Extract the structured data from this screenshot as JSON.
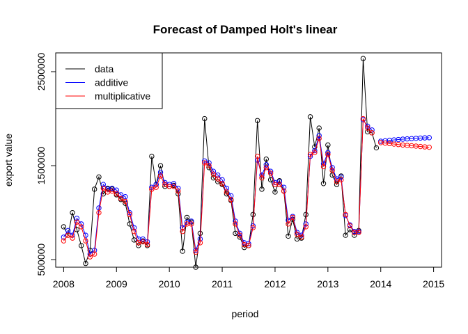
{
  "chart_data": {
    "type": "line",
    "title": "Forecast of Damped Holt's linear",
    "xlabel": "period",
    "ylabel": "export value",
    "xlim": [
      2007.85,
      2015.15
    ],
    "ylim": [
      420000,
      2700000
    ],
    "x_ticks": [
      2008,
      2009,
      2010,
      2011,
      2012,
      2013,
      2014,
      2015
    ],
    "x_tick_labels": [
      "2008",
      "2009",
      "2010",
      "2011",
      "2012",
      "2013",
      "2014",
      "2015"
    ],
    "y_ticks": [
      500000,
      1500000,
      2500000
    ],
    "y_tick_labels": [
      "500000",
      "1500000",
      "2500000"
    ],
    "legend": {
      "position": "top-left",
      "entries": [
        {
          "label": "data",
          "color": "#000000"
        },
        {
          "label": "additive",
          "color": "#0000ff"
        },
        {
          "label": "multiplicative",
          "color": "#ff0000"
        }
      ]
    },
    "start": 2008.0,
    "step": 0.0833333,
    "series": [
      {
        "name": "data",
        "color": "#000000",
        "marker": "circle",
        "values": [
          850000,
          760000,
          1000000,
          820000,
          650000,
          460000,
          600000,
          1250000,
          1380000,
          1200000,
          1260000,
          1250000,
          1190000,
          1140000,
          1100000,
          880000,
          710000,
          650000,
          700000,
          650000,
          1600000,
          1300000,
          1500000,
          1280000,
          1280000,
          1290000,
          1200000,
          590000,
          950000,
          900000,
          420000,
          780000,
          2000000,
          1480000,
          1370000,
          1330000,
          1300000,
          1200000,
          1130000,
          780000,
          740000,
          630000,
          650000,
          980000,
          1980000,
          1250000,
          1570000,
          1350000,
          1220000,
          1340000,
          1230000,
          750000,
          930000,
          720000,
          730000,
          980000,
          2020000,
          1700000,
          1900000,
          1310000,
          1720000,
          1400000,
          1300000,
          1390000,
          760000,
          820000,
          760000,
          810000,
          2640000,
          1860000,
          1850000,
          1690000
        ]
      },
      {
        "name": "additive",
        "color": "#0000ff",
        "marker": "circle",
        "values": [
          740000,
          810000,
          760000,
          940000,
          880000,
          760000,
          560000,
          600000,
          1050000,
          1300000,
          1250000,
          1260000,
          1240000,
          1190000,
          1170000,
          1000000,
          840000,
          720000,
          720000,
          690000,
          1270000,
          1300000,
          1430000,
          1320000,
          1300000,
          1310000,
          1260000,
          840000,
          900000,
          910000,
          600000,
          720000,
          1550000,
          1530000,
          1440000,
          1400000,
          1350000,
          1260000,
          1180000,
          910000,
          780000,
          680000,
          670000,
          860000,
          1560000,
          1400000,
          1510000,
          1440000,
          1320000,
          1330000,
          1270000,
          920000,
          960000,
          790000,
          760000,
          880000,
          1600000,
          1660000,
          1820000,
          1520000,
          1640000,
          1480000,
          1360000,
          1380000,
          970000,
          870000,
          800000,
          800000,
          1990000,
          1920000,
          1880000
        ]
      },
      {
        "name": "multiplicative",
        "color": "#ff0000",
        "marker": "circle",
        "values": [
          700000,
          760000,
          730000,
          900000,
          850000,
          700000,
          530000,
          560000,
          1000000,
          1260000,
          1220000,
          1230000,
          1200000,
          1150000,
          1120000,
          980000,
          800000,
          680000,
          690000,
          660000,
          1250000,
          1270000,
          1390000,
          1300000,
          1280000,
          1280000,
          1230000,
          800000,
          880000,
          880000,
          580000,
          680000,
          1530000,
          1500000,
          1410000,
          1360000,
          1310000,
          1220000,
          1140000,
          880000,
          760000,
          660000,
          650000,
          840000,
          1600000,
          1370000,
          1480000,
          1420000,
          1300000,
          1300000,
          1230000,
          880000,
          950000,
          770000,
          740000,
          850000,
          1620000,
          1640000,
          1790000,
          1490000,
          1620000,
          1450000,
          1330000,
          1350000,
          980000,
          860000,
          790000,
          790000,
          2000000,
          1900000,
          1850000
        ]
      }
    ],
    "forecast": {
      "start": 2014.0,
      "step": 0.0833333,
      "series": [
        {
          "name": "additive",
          "color": "#0000ff",
          "values": [
            1760000,
            1765000,
            1770000,
            1774000,
            1778000,
            1782000,
            1785000,
            1788000,
            1791000,
            1794000,
            1796000,
            1798000
          ]
        },
        {
          "name": "multiplicative",
          "color": "#ff0000",
          "values": [
            1745000,
            1740000,
            1735000,
            1730000,
            1725000,
            1720000,
            1716000,
            1712000,
            1708000,
            1704000,
            1700000,
            1696000
          ]
        }
      ]
    }
  }
}
